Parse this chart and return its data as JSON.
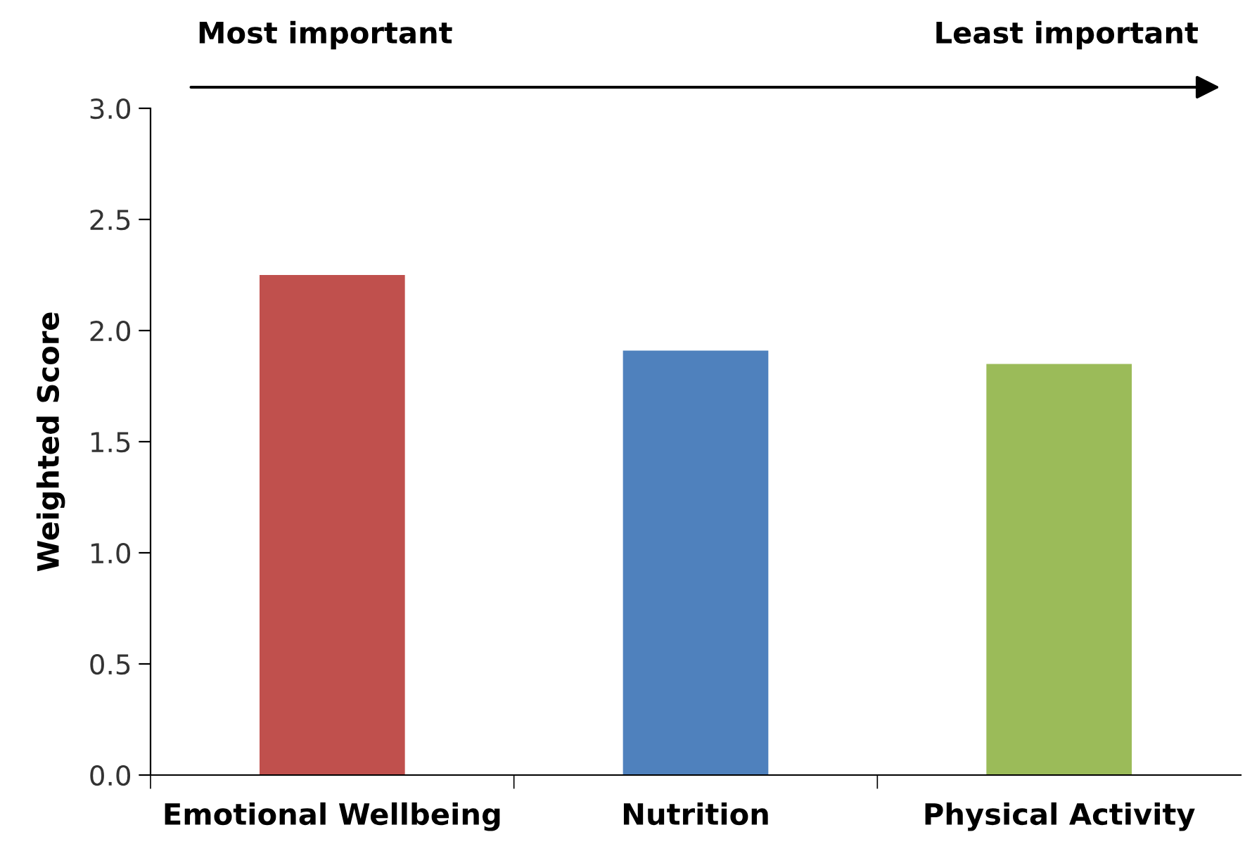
{
  "chart_data": {
    "type": "bar",
    "ylabel": "Weighted Score",
    "categories": [
      "Emotional Wellbeing",
      "Nutrition",
      "Physical Activity"
    ],
    "values": [
      2.25,
      1.91,
      1.85
    ],
    "colors": [
      "#c0504d",
      "#4f81bd",
      "#9bbb59"
    ],
    "ylim": [
      0,
      3
    ],
    "yticks": [
      {
        "value": 0,
        "label": "0.0"
      },
      {
        "value": 0.5,
        "label": "0.5"
      },
      {
        "value": 1,
        "label": "1.0"
      },
      {
        "value": 1.5,
        "label": "1.5"
      },
      {
        "value": 2,
        "label": "2.0"
      },
      {
        "value": 2.5,
        "label": "2.5"
      },
      {
        "value": 3,
        "label": "3.0"
      }
    ],
    "grid": false,
    "legend": false,
    "annotations": [
      "Most important",
      "Least important"
    ]
  }
}
